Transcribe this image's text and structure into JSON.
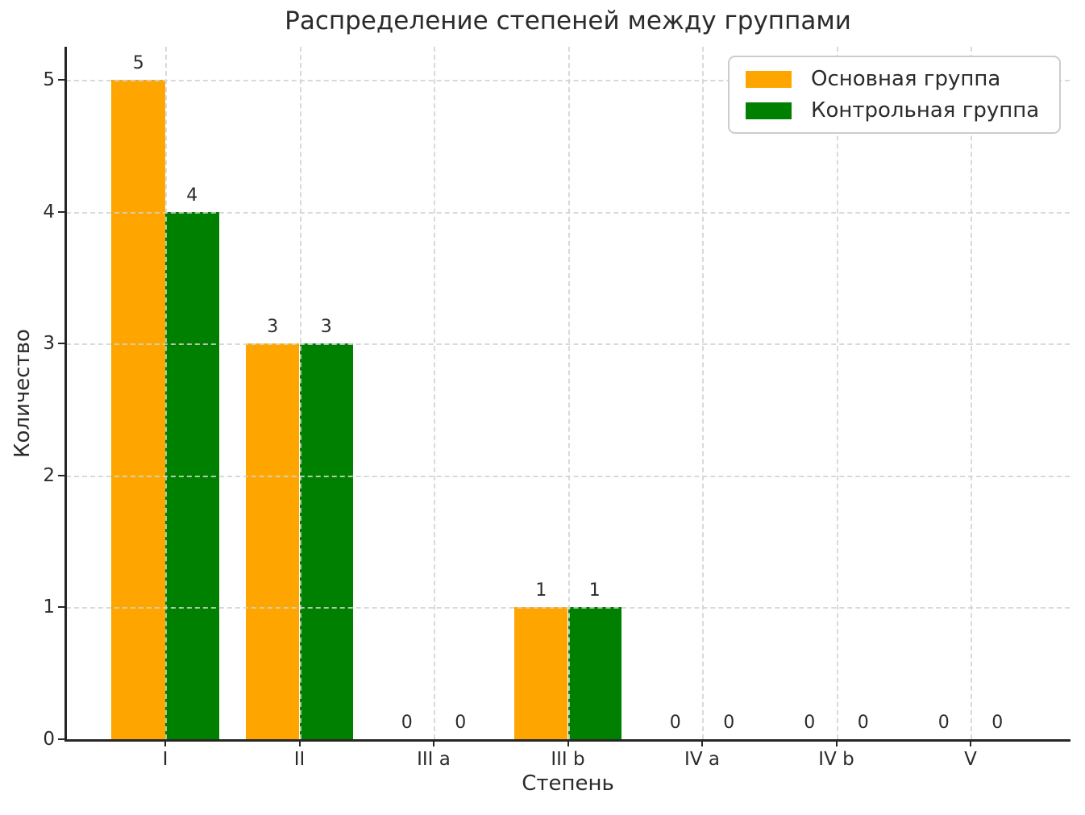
{
  "chart_data": {
    "type": "bar",
    "title": "Распределение степеней между группами",
    "xlabel": "Степень",
    "ylabel": "Количество",
    "categories": [
      "I",
      "II",
      "III a",
      "III b",
      "IV a",
      "IV b",
      "V"
    ],
    "series": [
      {
        "name": "Основная группа",
        "color": "#FFA500",
        "values": [
          5,
          3,
          0,
          1,
          0,
          0,
          0
        ]
      },
      {
        "name": "Контрольная группа",
        "color": "#008000",
        "values": [
          4,
          3,
          0,
          1,
          0,
          0,
          0
        ]
      }
    ],
    "yticks": [
      0,
      1,
      2,
      3,
      4,
      5
    ],
    "ylim": [
      0,
      5.25
    ],
    "bar_width_fraction": 0.4,
    "bar_value_labels_shown": true,
    "grid": "dashed-both-directions",
    "grid_color": "#d3d3d3",
    "spine_color": "#262626",
    "text_color": "#2b2b2b",
    "legend_position": "upper-right"
  }
}
